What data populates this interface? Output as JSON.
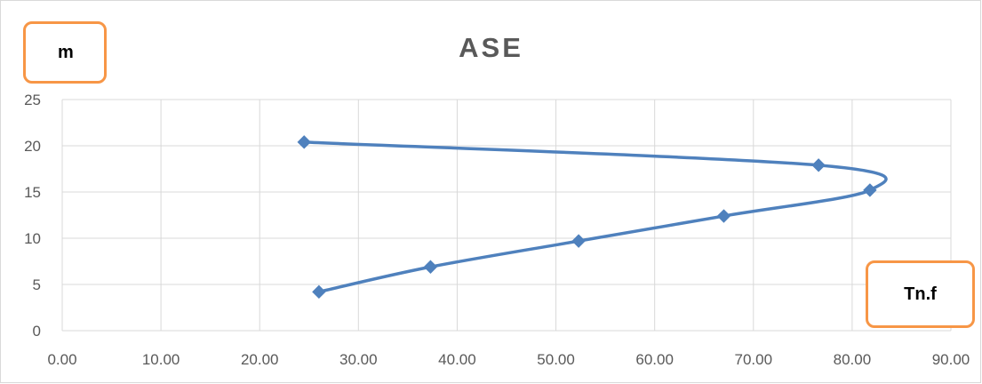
{
  "chart_data": {
    "type": "scatter",
    "title": "ASE",
    "ylabel": "m",
    "xlabel": "Tn.f",
    "xlim": [
      0,
      90
    ],
    "ylim": [
      0,
      25
    ],
    "x_ticks": [
      "0.00",
      "10.00",
      "20.00",
      "30.00",
      "40.00",
      "50.00",
      "60.00",
      "70.00",
      "80.00",
      "90.00"
    ],
    "y_ticks": [
      "0",
      "5",
      "10",
      "15",
      "20",
      "25"
    ],
    "grid": true,
    "smooth_lines": true,
    "marker": "diamond",
    "series": [
      {
        "color": "#4f81bd",
        "points": [
          {
            "x": 26.0,
            "y": 4.2
          },
          {
            "x": 37.3,
            "y": 6.9
          },
          {
            "x": 52.3,
            "y": 9.7
          },
          {
            "x": 67.0,
            "y": 12.4
          },
          {
            "x": 81.8,
            "y": 15.2
          },
          {
            "x": 76.6,
            "y": 17.9
          },
          {
            "x": 24.5,
            "y": 20.4
          }
        ]
      }
    ]
  },
  "colors": {
    "series": "#4f81bd",
    "label_box_border": "#f79646",
    "gridline": "#d9d9d9",
    "tick_text": "#595959"
  }
}
